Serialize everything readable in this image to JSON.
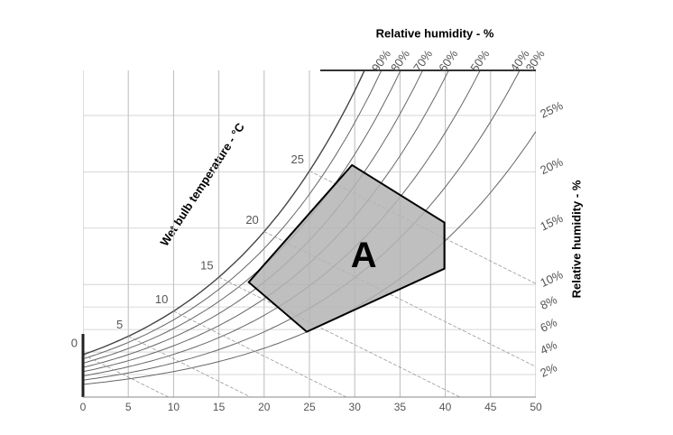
{
  "chart_data": {
    "type": "psychrometric",
    "title": "Relative humidity - %",
    "y_label": "Relative humidity - %",
    "wet_bulb_label": "Wet bulb temperature - °C",
    "xlim": [
      0,
      50
    ],
    "xticks": [
      0,
      5,
      10,
      15,
      20,
      25,
      30,
      35,
      40,
      45,
      50
    ],
    "ylim": [
      0,
      29
    ],
    "yticks": [
      {
        "value": 2,
        "label": "2%"
      },
      {
        "value": 4,
        "label": "4%"
      },
      {
        "value": 6,
        "label": "6%"
      },
      {
        "value": 8,
        "label": "8%"
      },
      {
        "value": 10,
        "label": "10%"
      },
      {
        "value": 15,
        "label": "15%"
      },
      {
        "value": 20,
        "label": "20%"
      },
      {
        "value": 25,
        "label": "25%"
      }
    ],
    "rh_curves": [
      {
        "value": 90,
        "label": "90%"
      },
      {
        "value": 80,
        "label": "80%"
      },
      {
        "value": 70,
        "label": "70%"
      },
      {
        "value": 60,
        "label": "60%"
      },
      {
        "value": 50,
        "label": "50%"
      },
      {
        "value": 40,
        "label": "40%"
      },
      {
        "value": 30,
        "label": "30%"
      }
    ],
    "wet_bulb": [
      0,
      5,
      10,
      15,
      20,
      25
    ],
    "region": {
      "label": "A",
      "color": "#b4b4b4",
      "x": [
        18.3,
        29.7,
        39.9,
        39.9,
        24.7
      ],
      "y": [
        10.2,
        20.6,
        15.5,
        11.4,
        5.8
      ]
    }
  }
}
